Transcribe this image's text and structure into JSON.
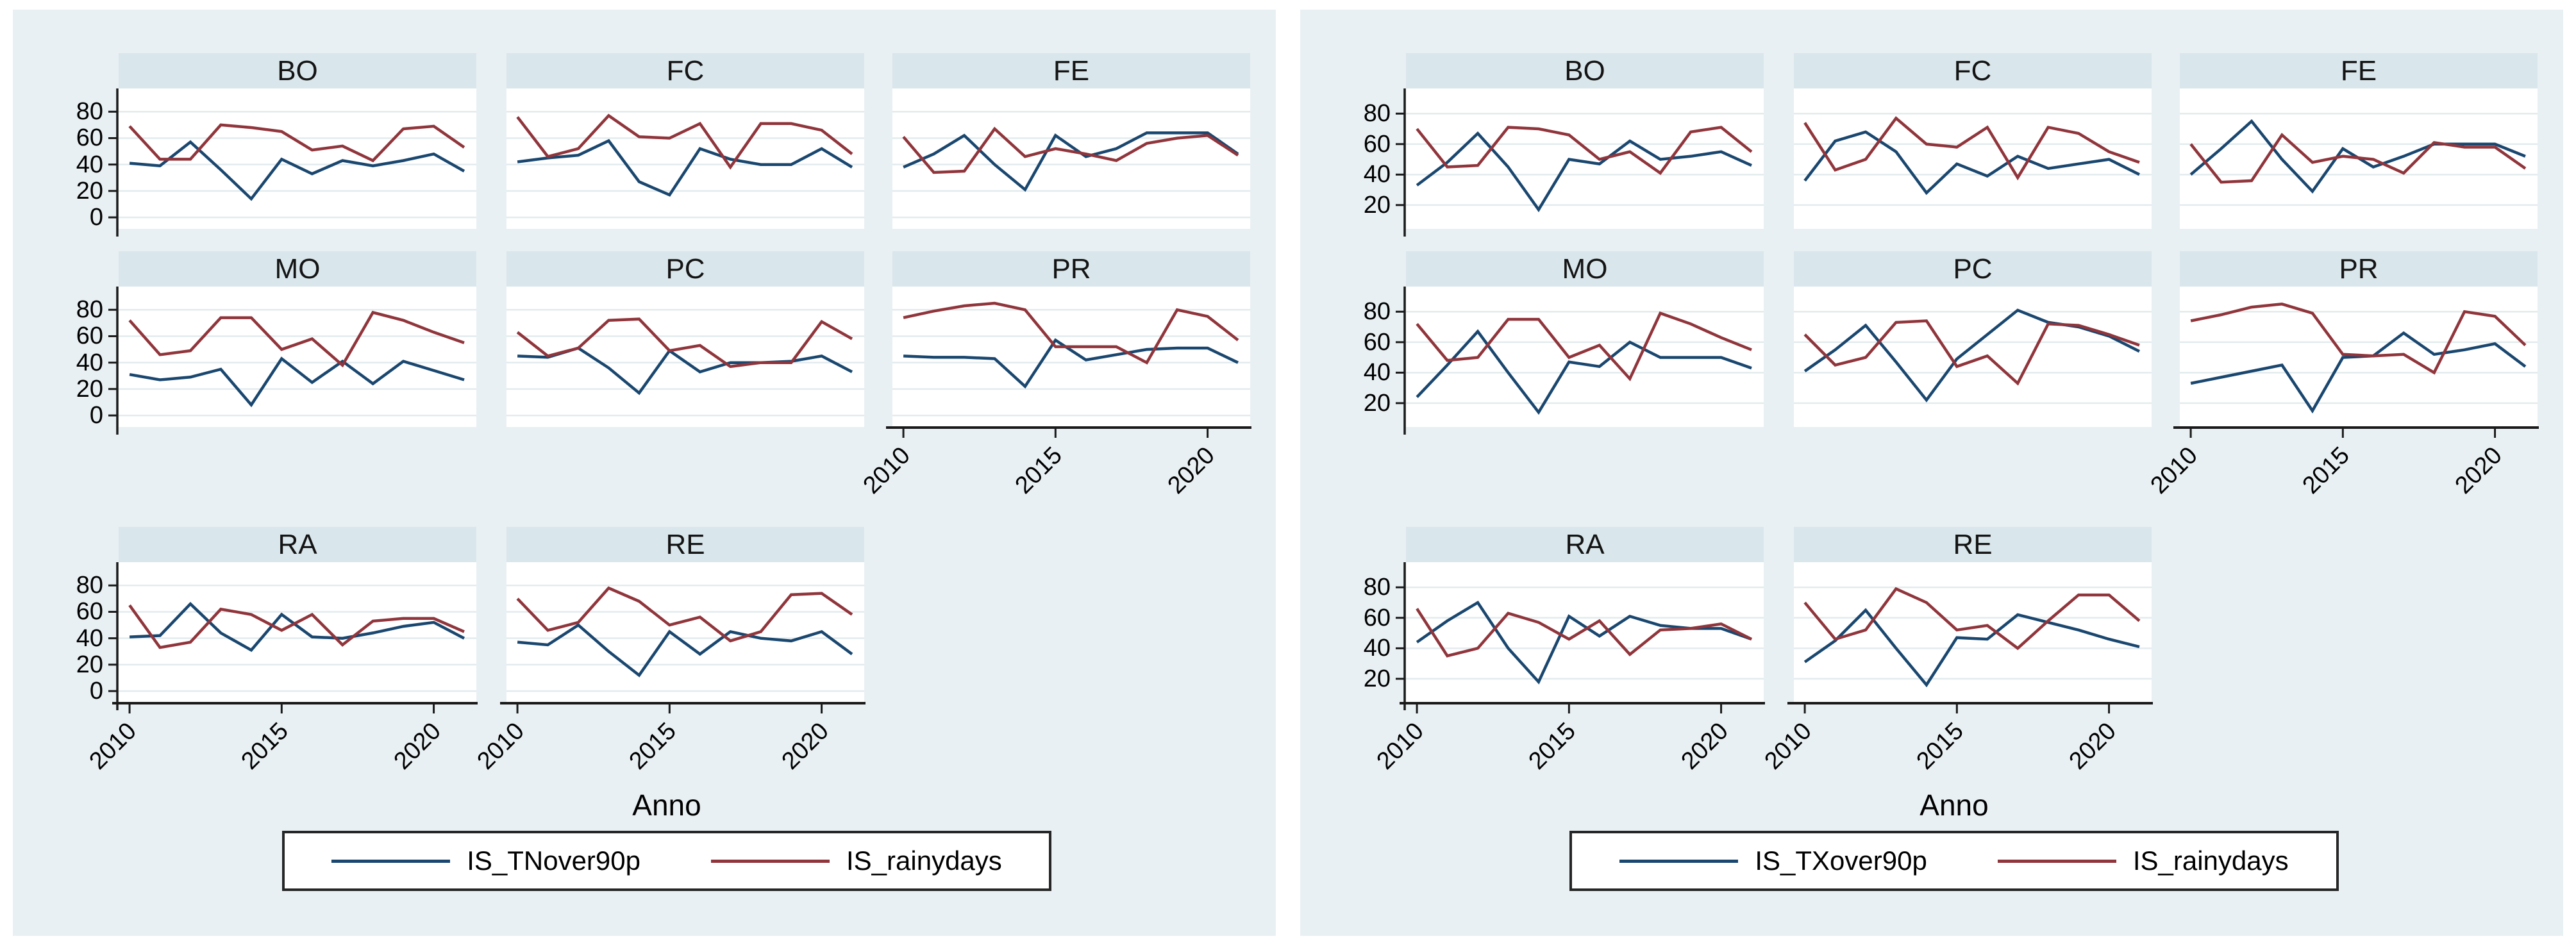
{
  "page": {
    "background": "#ffffff"
  },
  "chart_data": [
    {
      "type": "line",
      "x_label": "Anno",
      "x": [
        2010,
        2011,
        2012,
        2013,
        2014,
        2015,
        2016,
        2017,
        2018,
        2019,
        2020,
        2021
      ],
      "x_ticks": [
        2010,
        2015,
        2020
      ],
      "y_ticks": [
        0,
        20,
        40,
        60,
        80
      ],
      "x_domain": [
        2009.64,
        2021.4
      ],
      "y_domain": [
        -8.7,
        97.6
      ],
      "grid": true,
      "legend_position": "bottom",
      "legend": [
        {
          "name": "IS_TNover90p",
          "color": "#1a476f"
        },
        {
          "name": "IS_rainydays",
          "color": "#90353b"
        }
      ],
      "colors": {
        "figure_bg": "#e9f0f3",
        "panel_title_bg": "#d9e6eb",
        "plot_bg": "#ffffff",
        "gridline": "#e3ebee",
        "axis": "#1a1a1a"
      },
      "panels": [
        {
          "title": "BO",
          "series": [
            [
              41,
              39,
              57,
              36,
              14,
              44,
              33,
              43,
              39,
              43,
              48,
              35
            ],
            [
              69,
              44,
              44,
              70,
              68,
              65,
              51,
              54,
              43,
              67,
              69,
              53
            ]
          ]
        },
        {
          "title": "FC",
          "series": [
            [
              42,
              45,
              47,
              58,
              27,
              17,
              52,
              44,
              40,
              40,
              52,
              38
            ],
            [
              76,
              46,
              52,
              77,
              61,
              60,
              71,
              38,
              71,
              71,
              66,
              48
            ]
          ]
        },
        {
          "title": "FE",
          "series": [
            [
              38,
              48,
              62,
              40,
              21,
              62,
              46,
              52,
              64,
              64,
              64,
              48
            ],
            [
              61,
              34,
              35,
              67,
              46,
              52,
              48,
              43,
              56,
              60,
              62,
              47
            ]
          ]
        },
        {
          "title": "MO",
          "series": [
            [
              31,
              27,
              29,
              35,
              8,
              43,
              25,
              41,
              24,
              41,
              34,
              27
            ],
            [
              72,
              46,
              49,
              74,
              74,
              50,
              58,
              38,
              78,
              72,
              63,
              55
            ]
          ]
        },
        {
          "title": "PC",
          "series": [
            [
              45,
              44,
              51,
              36,
              17,
              49,
              33,
              40,
              40,
              41,
              45,
              33
            ],
            [
              63,
              45,
              51,
              72,
              73,
              49,
              53,
              37,
              40,
              40,
              71,
              58
            ]
          ]
        },
        {
          "title": "PR",
          "series": [
            [
              45,
              44,
              44,
              43,
              22,
              57,
              42,
              46,
              50,
              51,
              51,
              40
            ],
            [
              74,
              79,
              83,
              85,
              80,
              52,
              52,
              52,
              40,
              80,
              75,
              57
            ]
          ]
        },
        {
          "title": "RA",
          "series": [
            [
              41,
              42,
              66,
              44,
              31,
              58,
              41,
              40,
              44,
              49,
              52,
              40
            ],
            [
              65,
              33,
              37,
              62,
              58,
              46,
              58,
              35,
              53,
              55,
              55,
              45
            ]
          ]
        },
        {
          "title": "RE",
          "series": [
            [
              37,
              35,
              50,
              30,
              12,
              45,
              28,
              45,
              40,
              38,
              45,
              28
            ],
            [
              70,
              46,
              52,
              78,
              68,
              50,
              56,
              38,
              45,
              73,
              74,
              58
            ]
          ]
        }
      ]
    },
    {
      "type": "line",
      "x_label": "Anno",
      "x": [
        2010,
        2011,
        2012,
        2013,
        2014,
        2015,
        2016,
        2017,
        2018,
        2019,
        2020,
        2021
      ],
      "x_ticks": [
        2010,
        2015,
        2020
      ],
      "y_ticks": [
        20,
        40,
        60,
        80
      ],
      "x_domain": [
        2009.64,
        2021.4
      ],
      "y_domain": [
        4.4,
        96.5
      ],
      "grid": true,
      "legend_position": "bottom",
      "legend": [
        {
          "name": "IS_TXover90p",
          "color": "#1a476f"
        },
        {
          "name": "IS_rainydays",
          "color": "#90353b"
        }
      ],
      "colors": {
        "figure_bg": "#e9f0f3",
        "panel_title_bg": "#d9e6eb",
        "plot_bg": "#ffffff",
        "gridline": "#e3ebee",
        "axis": "#1a1a1a"
      },
      "panels": [
        {
          "title": "BO",
          "series": [
            [
              33,
              48,
              67,
              45,
              17,
              50,
              47,
              62,
              50,
              52,
              55,
              46
            ],
            [
              70,
              45,
              46,
              71,
              70,
              66,
              50,
              55,
              41,
              68,
              71,
              55
            ]
          ]
        },
        {
          "title": "FC",
          "series": [
            [
              36,
              62,
              68,
              55,
              28,
              47,
              39,
              52,
              44,
              47,
              50,
              40
            ],
            [
              74,
              43,
              50,
              77,
              60,
              58,
              71,
              38,
              71,
              67,
              55,
              48
            ]
          ]
        },
        {
          "title": "FE",
          "series": [
            [
              40,
              57,
              75,
              50,
              29,
              57,
              45,
              52,
              60,
              60,
              60,
              52
            ],
            [
              60,
              35,
              36,
              66,
              48,
              52,
              50,
              41,
              61,
              58,
              58,
              44
            ]
          ]
        },
        {
          "title": "MO",
          "series": [
            [
              24,
              45,
              67,
              40,
              14,
              47,
              44,
              60,
              50,
              50,
              50,
              43
            ],
            [
              72,
              48,
              50,
              75,
              75,
              50,
              58,
              36,
              79,
              72,
              63,
              55
            ]
          ]
        },
        {
          "title": "PC",
          "series": [
            [
              41,
              55,
              71,
              47,
              22,
              49,
              65,
              81,
              73,
              70,
              64,
              54
            ],
            [
              65,
              45,
              50,
              73,
              74,
              44,
              51,
              33,
              72,
              71,
              65,
              58
            ]
          ]
        },
        {
          "title": "PR",
          "series": [
            [
              33,
              37,
              41,
              45,
              15,
              50,
              51,
              66,
              52,
              55,
              59,
              44
            ],
            [
              74,
              78,
              83,
              85,
              79,
              52,
              51,
              52,
              40,
              80,
              77,
              58
            ]
          ]
        },
        {
          "title": "RA",
          "series": [
            [
              44,
              58,
              70,
              40,
              18,
              61,
              48,
              61,
              55,
              53,
              53,
              46
            ],
            [
              66,
              35,
              40,
              63,
              57,
              46,
              58,
              36,
              52,
              53,
              56,
              46
            ]
          ]
        },
        {
          "title": "RE",
          "series": [
            [
              31,
              45,
              65,
              40,
              16,
              47,
              46,
              62,
              57,
              52,
              46,
              41
            ],
            [
              70,
              46,
              52,
              79,
              70,
              52,
              55,
              40,
              58,
              75,
              75,
              58
            ]
          ]
        }
      ]
    }
  ]
}
